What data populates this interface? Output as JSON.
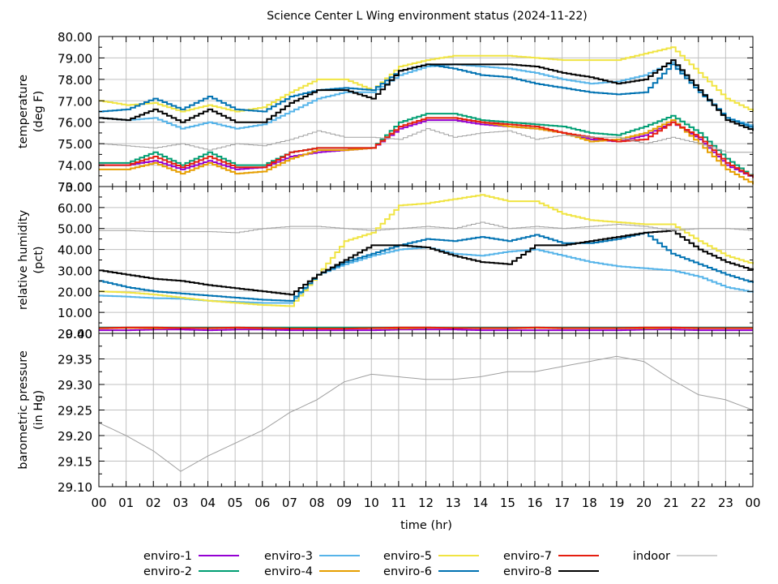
{
  "chart_data": {
    "type": "line",
    "title": "Science Center L Wing environment status (2024-11-22)",
    "xlabel": "time (hr)",
    "x_tick_labels": [
      "00",
      "01",
      "02",
      "03",
      "04",
      "05",
      "06",
      "07",
      "08",
      "09",
      "10",
      "11",
      "12",
      "13",
      "14",
      "15",
      "16",
      "17",
      "18",
      "19",
      "20",
      "21",
      "22",
      "23",
      "00"
    ],
    "xlim": [
      0,
      24
    ],
    "grid": true,
    "legend_position": "bottom",
    "x": [
      0,
      1,
      2,
      3,
      4,
      5,
      6,
      7,
      8,
      9,
      10,
      11,
      12,
      13,
      14,
      15,
      16,
      17,
      18,
      19,
      20,
      21,
      22,
      23,
      24
    ],
    "series_styles": [
      {
        "name": "enviro-1",
        "color": "#9400d3"
      },
      {
        "name": "enviro-2",
        "color": "#009e73"
      },
      {
        "name": "enviro-3",
        "color": "#56b4e9"
      },
      {
        "name": "enviro-4",
        "color": "#e69f00"
      },
      {
        "name": "enviro-5",
        "color": "#f0e442"
      },
      {
        "name": "enviro-6",
        "color": "#0072b2"
      },
      {
        "name": "enviro-7",
        "color": "#e51e10"
      },
      {
        "name": "enviro-8",
        "color": "#000000"
      },
      {
        "name": "indoor",
        "color": "#a0a0a0"
      }
    ],
    "panels": [
      {
        "id": "temperature",
        "ylabel": [
          "temperature",
          "(deg F)"
        ],
        "ylim": [
          73,
          80
        ],
        "y_ticks": [
          73,
          74,
          75,
          76,
          77,
          78,
          79,
          80
        ],
        "y_tick_labels": [
          "73.00",
          "74.00",
          "75.00",
          "76.00",
          "77.00",
          "78.00",
          "79.00",
          "80.00"
        ],
        "series": [
          {
            "name": "enviro-1",
            "values": [
              74.0,
              74.0,
              74.2,
              73.8,
              74.2,
              73.8,
              73.9,
              74.4,
              74.6,
              74.7,
              74.8,
              75.7,
              76.1,
              76.1,
              75.9,
              75.8,
              75.7,
              75.5,
              75.2,
              75.1,
              75.4,
              76.0,
              75.2,
              74.0,
              73.4
            ]
          },
          {
            "name": "enviro-2",
            "values": [
              74.1,
              74.1,
              74.6,
              74.0,
              74.6,
              74.0,
              74.0,
              74.6,
              74.8,
              74.8,
              74.8,
              76.0,
              76.4,
              76.4,
              76.1,
              76.0,
              75.9,
              75.8,
              75.5,
              75.4,
              75.8,
              76.3,
              75.5,
              74.3,
              73.4
            ]
          },
          {
            "name": "enviro-3",
            "values": [
              76.2,
              76.1,
              76.2,
              75.7,
              76.0,
              75.7,
              75.9,
              76.5,
              77.1,
              77.4,
              77.4,
              78.2,
              78.6,
              78.7,
              78.6,
              78.5,
              78.3,
              78.0,
              77.8,
              77.9,
              78.2,
              78.8,
              77.5,
              76.2,
              75.8
            ]
          },
          {
            "name": "enviro-4",
            "values": [
              73.8,
              73.8,
              74.1,
              73.6,
              74.1,
              73.6,
              73.7,
              74.3,
              74.7,
              74.7,
              74.8,
              75.8,
              76.2,
              76.2,
              76.0,
              75.8,
              75.7,
              75.5,
              75.1,
              75.2,
              75.5,
              76.1,
              75.0,
              73.8,
              73.1
            ]
          },
          {
            "name": "enviro-5",
            "values": [
              77.0,
              76.8,
              76.9,
              76.5,
              76.8,
              76.5,
              76.7,
              77.4,
              78.0,
              78.0,
              77.5,
              78.6,
              78.9,
              79.1,
              79.1,
              79.1,
              79.0,
              78.9,
              78.9,
              78.9,
              79.2,
              79.5,
              78.3,
              77.1,
              76.5
            ]
          },
          {
            "name": "enviro-6",
            "values": [
              76.5,
              76.6,
              77.1,
              76.6,
              77.2,
              76.6,
              76.5,
              77.2,
              77.5,
              77.6,
              77.5,
              78.4,
              78.7,
              78.5,
              78.2,
              78.1,
              77.8,
              77.6,
              77.4,
              77.3,
              77.4,
              78.7,
              77.4,
              76.2,
              75.7
            ]
          },
          {
            "name": "enviro-7",
            "values": [
              74.0,
              74.0,
              74.4,
              73.9,
              74.4,
              73.9,
              73.9,
              74.6,
              74.8,
              74.8,
              74.8,
              75.8,
              76.2,
              76.2,
              76.0,
              75.9,
              75.8,
              75.5,
              75.3,
              75.1,
              75.2,
              76.0,
              75.3,
              74.1,
              73.4
            ]
          },
          {
            "name": "enviro-8",
            "values": [
              76.2,
              76.1,
              76.6,
              76.0,
              76.6,
              76.0,
              76.0,
              76.9,
              77.5,
              77.5,
              77.1,
              78.4,
              78.7,
              78.7,
              78.7,
              78.7,
              78.6,
              78.3,
              78.1,
              77.8,
              78.0,
              78.9,
              77.5,
              76.1,
              75.6
            ]
          },
          {
            "name": "indoor",
            "values": [
              75.0,
              74.9,
              74.8,
              75.0,
              74.7,
              75.0,
              74.9,
              75.2,
              75.6,
              75.3,
              75.3,
              75.2,
              75.7,
              75.3,
              75.5,
              75.6,
              75.2,
              75.4,
              75.3,
              75.3,
              75.0,
              75.3,
              75.0,
              74.6,
              74.6
            ]
          }
        ]
      },
      {
        "id": "humidity",
        "ylabel": [
          "relative humidity",
          "(pct)"
        ],
        "ylim": [
          0,
          70
        ],
        "y_ticks": [
          0,
          10,
          20,
          30,
          40,
          50,
          60,
          70
        ],
        "y_tick_labels": [
          "0.00",
          "10.00",
          "20.00",
          "30.00",
          "40.00",
          "50.00",
          "60.00",
          "70.00"
        ],
        "series": [
          {
            "name": "enviro-1",
            "values": [
              1.5,
              1.5,
              1.8,
              1.8,
              1.5,
              1.8,
              1.8,
              1.5,
              1.5,
              1.5,
              1.5,
              1.8,
              1.8,
              1.8,
              1.5,
              1.5,
              1.5,
              1.5,
              1.5,
              1.5,
              1.8,
              1.8,
              1.5,
              1.5,
              1.5
            ]
          },
          {
            "name": "enviro-2",
            "values": [
              2.8,
              2.8,
              2.8,
              2.8,
              2.8,
              2.8,
              2.8,
              2.8,
              2.8,
              2.8,
              2.8,
              2.8,
              2.8,
              2.8,
              2.8,
              2.8,
              2.8,
              2.8,
              2.8,
              2.8,
              2.8,
              2.8,
              2.8,
              2.8,
              2.8
            ]
          },
          {
            "name": "enviro-3",
            "values": [
              18,
              17.5,
              16.8,
              16.5,
              15.5,
              15,
              14.5,
              14.5,
              28,
              33,
              37,
              40,
              41,
              38,
              37,
              39,
              40,
              37,
              34,
              32,
              31,
              30,
              27,
              22,
              19.5
            ]
          },
          {
            "name": "enviro-4",
            "values": [
              2.4,
              2.6,
              2.4,
              2.6,
              2.4,
              2.6,
              2.4,
              2.3,
              2.3,
              2.3,
              2.4,
              2.4,
              2.6,
              2.6,
              2.4,
              2.4,
              2.6,
              2.4,
              2.4,
              2.4,
              2.4,
              2.6,
              2.4,
              2.4,
              2.4
            ]
          },
          {
            "name": "enviro-5",
            "values": [
              20,
              19.5,
              18.5,
              17,
              15.5,
              14.5,
              13.5,
              13,
              28,
              44,
              48,
              61,
              62,
              64,
              66,
              63,
              63,
              57,
              54,
              53,
              52,
              52,
              44,
              37,
              33
            ]
          },
          {
            "name": "enviro-6",
            "values": [
              25,
              22,
              20,
              19,
              18,
              17,
              16,
              15.5,
              28,
              34,
              38,
              42,
              45,
              44,
              46,
              44,
              47,
              43,
              43,
              45,
              48,
              38,
              33,
              28,
              24
            ]
          },
          {
            "name": "enviro-7",
            "values": [
              2.5,
              2.8,
              2.8,
              2.5,
              2.5,
              2.8,
              2.5,
              2.3,
              2.3,
              2.3,
              2.5,
              2.8,
              2.8,
              2.5,
              2.5,
              2.5,
              2.8,
              2.5,
              2.5,
              2.5,
              2.8,
              2.8,
              2.5,
              2.5,
              2.5
            ]
          },
          {
            "name": "enviro-8",
            "values": [
              30,
              28,
              26,
              25,
              23,
              21.5,
              20,
              18.5,
              28,
              35,
              42,
              42,
              41,
              37,
              34,
              33,
              42,
              42,
              44,
              46,
              48,
              49,
              40,
              34,
              30
            ]
          },
          {
            "name": "indoor",
            "values": [
              49,
              49,
              48.5,
              48.5,
              48.5,
              48,
              50,
              51,
              51,
              50,
              49,
              50,
              51,
              50,
              53,
              50,
              51,
              50,
              51,
              52,
              51,
              49,
              50,
              50,
              49
            ]
          }
        ]
      },
      {
        "id": "pressure",
        "ylabel": [
          "barometric pressure",
          "(in Hg)"
        ],
        "ylim": [
          29.1,
          29.4
        ],
        "y_ticks": [
          29.1,
          29.15,
          29.2,
          29.25,
          29.3,
          29.35,
          29.4
        ],
        "y_tick_labels": [
          "29.10",
          "29.15",
          "29.20",
          "29.25",
          "29.30",
          "29.35",
          "29.40"
        ],
        "series": [
          {
            "name": "indoor",
            "values": [
              29.225,
              29.2,
              29.17,
              29.13,
              29.16,
              29.185,
              29.21,
              29.245,
              29.27,
              29.305,
              29.32,
              29.315,
              29.31,
              29.31,
              29.315,
              29.325,
              29.325,
              29.335,
              29.345,
              29.355,
              29.345,
              29.31,
              29.28,
              29.27,
              29.25
            ]
          }
        ]
      }
    ],
    "legend": [
      "enviro-1",
      "enviro-2",
      "enviro-3",
      "enviro-4",
      "enviro-5",
      "enviro-6",
      "enviro-7",
      "enviro-8",
      "indoor"
    ]
  }
}
